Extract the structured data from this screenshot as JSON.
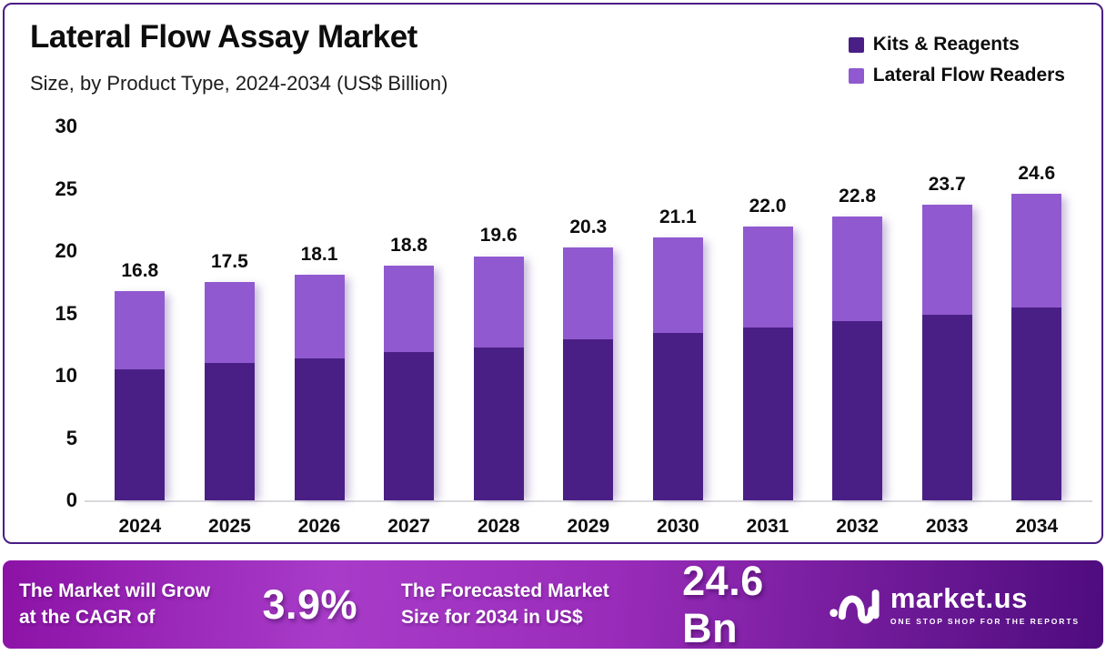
{
  "header": {
    "title": "Lateral Flow Assay Market",
    "subtitle": "Size, by Product Type, 2024-2034 (US$ Billion)"
  },
  "legend": [
    {
      "label": "Kits & Reagents",
      "color": "#4a1f85"
    },
    {
      "label": "Lateral Flow Readers",
      "color": "#9059cf"
    }
  ],
  "chart_data": {
    "type": "bar",
    "stacked": true,
    "title": "Lateral Flow Assay Market",
    "xlabel": "Year",
    "ylabel": "US$ Billion",
    "ylim": [
      0,
      30
    ],
    "yticks": [
      0,
      5,
      10,
      15,
      20,
      25,
      30
    ],
    "grid": false,
    "legend_position": "top-right",
    "categories": [
      "2024",
      "2025",
      "2026",
      "2027",
      "2028",
      "2029",
      "2030",
      "2031",
      "2032",
      "2033",
      "2034"
    ],
    "series": [
      {
        "name": "Kits & Reagents",
        "color": "#4a1f85",
        "values": [
          10.5,
          11.0,
          11.4,
          11.9,
          12.3,
          12.9,
          13.4,
          13.9,
          14.4,
          14.9,
          15.5
        ]
      },
      {
        "name": "Lateral Flow Readers",
        "color": "#9059cf",
        "values": [
          6.3,
          6.5,
          6.7,
          6.9,
          7.3,
          7.4,
          7.7,
          8.1,
          8.4,
          8.8,
          9.1
        ]
      }
    ],
    "totals": [
      16.8,
      17.5,
      18.1,
      18.8,
      19.6,
      20.3,
      21.1,
      22.0,
      22.8,
      23.7,
      24.6
    ],
    "total_labels": [
      "16.8",
      "17.5",
      "18.1",
      "18.8",
      "19.6",
      "20.3",
      "21.1",
      "22.0",
      "22.8",
      "23.7",
      "24.6"
    ]
  },
  "banner": {
    "cagr_line1": "The Market will Grow",
    "cagr_line2": "at the CAGR of",
    "cagr_value": "3.9%",
    "forecast_line1": "The Forecasted Market",
    "forecast_line2": "Size for 2034 in US$",
    "forecast_value": "24.6 Bn",
    "brand_name": "market.us",
    "brand_tagline": "ONE STOP SHOP FOR THE REPORTS"
  },
  "colors": {
    "card_border": "#4a1d85",
    "axis_line": "#d9d9de",
    "text": "#0d0d0d",
    "banner_gradient_start": "#8c12a6",
    "banner_gradient_mid": "#a83cc9",
    "banner_gradient_end": "#4e0c7e"
  }
}
